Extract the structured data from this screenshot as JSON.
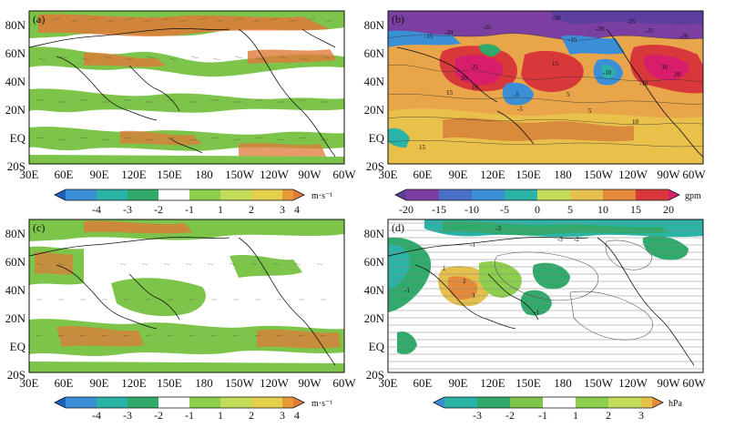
{
  "colors": {
    "blue_dark": "#1f5fbf",
    "blue": "#3b8fd6",
    "teal": "#2bb3a8",
    "green": "#2faa6a",
    "white": "#ffffff",
    "lime": "#8ccf4d",
    "yellow": "#e5d04c",
    "orange": "#e58a3a",
    "red": "#d9383a",
    "magenta": "#d81e6a",
    "purple": "#7a3fa0",
    "violet": "#5b3e9e",
    "wind_green": "#7cc44a",
    "wind_orange": "#e07a38"
  },
  "axes": {
    "lat_ticks": [
      "80N",
      "60N",
      "40N",
      "20N",
      "EQ",
      "20S"
    ],
    "lon_ticks": [
      "30E",
      "60E",
      "90E",
      "120E",
      "150E",
      "180",
      "150W",
      "120W",
      "90W",
      "60W"
    ]
  },
  "panels": [
    {
      "label": "(a)",
      "colorbar": {
        "ticks": [
          "-4",
          "-3",
          "-2",
          "-1",
          "1",
          "2",
          "3",
          "4"
        ],
        "unit": "m·s⁻¹"
      },
      "contour_labels": []
    },
    {
      "label": "(b)",
      "colorbar": {
        "ticks": [
          "-20",
          "-15",
          "-10",
          "-5",
          "0",
          "5",
          "10",
          "15",
          "20"
        ],
        "unit": "gpm"
      },
      "contour_labels": [
        "-15",
        "-20",
        "-25",
        "-30",
        "25",
        "20",
        "15",
        "10",
        "-5",
        "5",
        "-10",
        "-15",
        "-20",
        "-25",
        "30",
        "20",
        "15",
        "-5",
        "5",
        "-10",
        "-20",
        "-25",
        "15",
        "10"
      ]
    },
    {
      "label": "(c)",
      "colorbar": {
        "ticks": [
          "-4",
          "-3",
          "-2",
          "-1",
          "1",
          "2",
          "3",
          "4"
        ],
        "unit": "m·s⁻¹"
      },
      "contour_labels": []
    },
    {
      "label": "(d)",
      "colorbar": {
        "ticks": [
          "-3",
          "-2",
          "-1",
          "1",
          "2",
          "3"
        ],
        "unit": "hPa"
      },
      "contour_labels": [
        "-3",
        "-3",
        "-2",
        "-1",
        "2",
        "1",
        "3",
        "-1",
        "-1"
      ]
    }
  ]
}
